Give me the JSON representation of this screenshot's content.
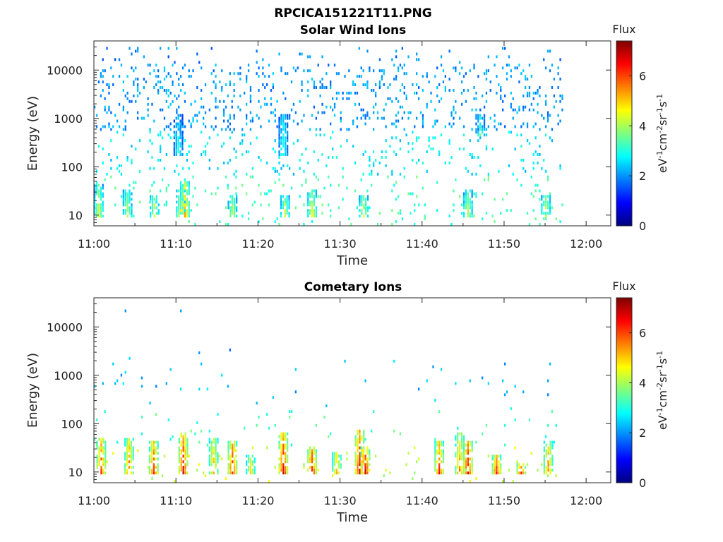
{
  "page_title": "RPCICA151221T11.PNG",
  "colors": {
    "colormap": [
      "#00007f",
      "#0000ff",
      "#007fff",
      "#00ffff",
      "#7fff7f",
      "#ffff00",
      "#ff7f00",
      "#ff0000",
      "#7f0000"
    ],
    "axis": "#262626",
    "background": "#ffffff"
  },
  "chart_data": [
    {
      "type": "heatmap",
      "title": "Solar Wind Ions",
      "xlabel": "Time",
      "ylabel": "Energy (eV)",
      "xlim": [
        "11:00",
        "12:03"
      ],
      "x_ticks": [
        "11:00",
        "11:10",
        "11:20",
        "11:30",
        "11:40",
        "11:50",
        "12:00"
      ],
      "y_scale": "log",
      "ylim": [
        6,
        40000
      ],
      "y_ticks": [
        10,
        100,
        1000,
        10000
      ],
      "y_tick_labels": [
        "10",
        "100",
        "1000",
        "10000"
      ],
      "data_time_range": [
        "11:00",
        "11:57"
      ],
      "colorbar": {
        "title": "Flux",
        "label": "eV-1cm-2sr-1s-1",
        "range": [
          0,
          7.4
        ],
        "ticks": [
          0,
          2,
          4,
          6
        ],
        "tick_labels": [
          "0",
          "2",
          "4",
          "6"
        ]
      },
      "grid": false,
      "bursts": [
        {
          "time_min": 0.5,
          "energy_low": 8,
          "energy_high": 40,
          "flux": 4.5
        },
        {
          "time_min": 4.0,
          "energy_low": 8,
          "energy_high": 30,
          "flux": 4.3
        },
        {
          "time_min": 7.3,
          "energy_low": 8,
          "energy_high": 25,
          "flux": 4.6
        },
        {
          "time_min": 10.2,
          "energy_low": 150,
          "energy_high": 1100,
          "flux": 3.0
        },
        {
          "time_min": 10.5,
          "energy_low": 8,
          "energy_high": 30,
          "flux": 4.8
        },
        {
          "time_min": 11.0,
          "energy_low": 8,
          "energy_high": 45,
          "flux": 5.4
        },
        {
          "time_min": 16.8,
          "energy_low": 8,
          "energy_high": 25,
          "flux": 4.4
        },
        {
          "time_min": 23.0,
          "energy_low": 150,
          "energy_high": 1200,
          "flux": 3.2
        },
        {
          "time_min": 23.2,
          "energy_low": 8,
          "energy_high": 25,
          "flux": 4.5
        },
        {
          "time_min": 26.5,
          "energy_low": 8,
          "energy_high": 30,
          "flux": 4.7
        },
        {
          "time_min": 32.8,
          "energy_low": 8,
          "energy_high": 25,
          "flux": 4.6
        },
        {
          "time_min": 45.5,
          "energy_low": 8,
          "energy_high": 30,
          "flux": 4.4
        },
        {
          "time_min": 47.0,
          "energy_low": 400,
          "energy_high": 1100,
          "flux": 3.4
        },
        {
          "time_min": 55.0,
          "energy_low": 8,
          "energy_high": 25,
          "flux": 4.5
        }
      ]
    },
    {
      "type": "heatmap",
      "title": "Cometary Ions",
      "xlabel": "Time",
      "ylabel": "Energy (eV)",
      "xlim": [
        "11:00",
        "12:03"
      ],
      "x_ticks": [
        "11:00",
        "11:10",
        "11:20",
        "11:30",
        "11:40",
        "11:50",
        "12:00"
      ],
      "y_scale": "log",
      "ylim": [
        6,
        40000
      ],
      "y_ticks": [
        10,
        100,
        1000,
        10000
      ],
      "y_tick_labels": [
        "10",
        "100",
        "1000",
        "10000"
      ],
      "data_time_range": [
        "11:00",
        "11:57"
      ],
      "colorbar": {
        "title": "Flux",
        "label": "eV-1cm-2sr-1s-1",
        "range": [
          0,
          7.4
        ],
        "ticks": [
          0,
          2,
          4,
          6
        ],
        "tick_labels": [
          "0",
          "2",
          "4",
          "6"
        ]
      },
      "grid": false,
      "bursts": [
        {
          "time_min": 0.8,
          "energy_low": 8,
          "energy_high": 50,
          "flux": 6.3
        },
        {
          "time_min": 4.2,
          "energy_low": 8,
          "energy_high": 45,
          "flux": 6.0
        },
        {
          "time_min": 7.2,
          "energy_low": 8,
          "energy_high": 40,
          "flux": 6.4
        },
        {
          "time_min": 10.8,
          "energy_low": 8,
          "energy_high": 60,
          "flux": 6.8
        },
        {
          "time_min": 14.5,
          "energy_low": 8,
          "energy_high": 50,
          "flux": 5.5
        },
        {
          "time_min": 16.8,
          "energy_low": 8,
          "energy_high": 40,
          "flux": 6.6
        },
        {
          "time_min": 19.0,
          "energy_low": 8,
          "energy_high": 20,
          "flux": 5.2
        },
        {
          "time_min": 23.0,
          "energy_low": 8,
          "energy_high": 60,
          "flux": 6.9
        },
        {
          "time_min": 26.5,
          "energy_low": 8,
          "energy_high": 30,
          "flux": 6.8
        },
        {
          "time_min": 29.5,
          "energy_low": 8,
          "energy_high": 25,
          "flux": 5.6
        },
        {
          "time_min": 32.3,
          "energy_low": 8,
          "energy_high": 70,
          "flux": 6.9
        },
        {
          "time_min": 33.0,
          "energy_low": 8,
          "energy_high": 30,
          "flux": 7.0
        },
        {
          "time_min": 42.0,
          "energy_low": 8,
          "energy_high": 40,
          "flux": 6.3
        },
        {
          "time_min": 44.5,
          "energy_low": 8,
          "energy_high": 60,
          "flux": 5.8
        },
        {
          "time_min": 45.5,
          "energy_low": 8,
          "energy_high": 40,
          "flux": 6.9
        },
        {
          "time_min": 49.0,
          "energy_low": 8,
          "energy_high": 20,
          "flux": 6.6
        },
        {
          "time_min": 52.0,
          "energy_low": 8,
          "energy_high": 15,
          "flux": 6.5
        },
        {
          "time_min": 55.3,
          "energy_low": 8,
          "energy_high": 40,
          "flux": 5.8
        }
      ]
    }
  ]
}
